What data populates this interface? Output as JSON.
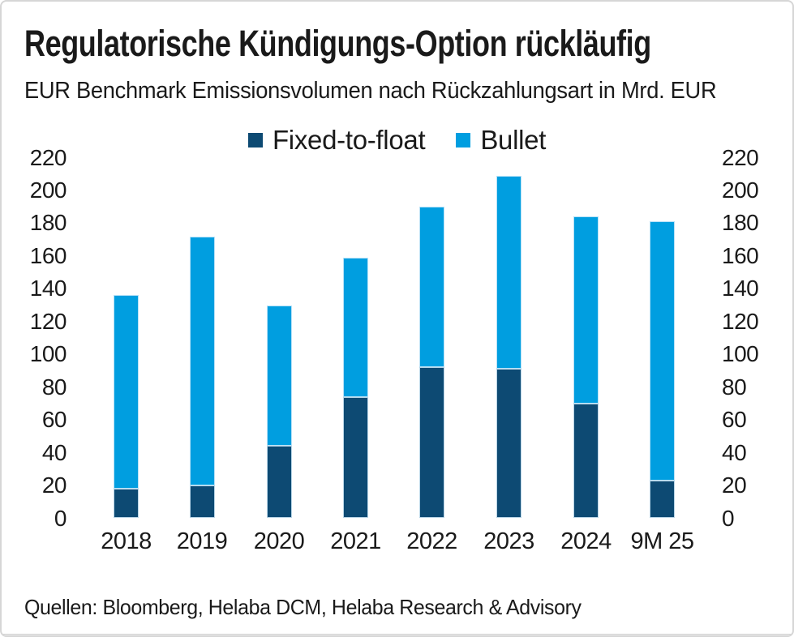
{
  "header": {
    "title": "Regulatorische Kündigungs-Option rückläufig",
    "subtitle": "EUR Benchmark Emissionsvolumen nach Rückzahlungsart in Mrd. EUR"
  },
  "footer": {
    "source": "Quellen: Bloomberg, Helaba DCM, Helaba Research & Advisory"
  },
  "colors": {
    "fixed_to_float": "#0D4A73",
    "bullet": "#009EE0",
    "text": "#1A1A1A"
  },
  "chart_data": {
    "type": "bar",
    "stacked": true,
    "title": "Regulatorische Kündigungs-Option rückläufig",
    "subtitle": "EUR Benchmark Emissionsvolumen nach Rückzahlungsart in Mrd. EUR",
    "unit": "Mrd. EUR",
    "categories": [
      "2018",
      "2019",
      "2020",
      "2021",
      "2022",
      "2023",
      "2024",
      "9M 25"
    ],
    "series": [
      {
        "name": "Fixed-to-float",
        "color": "#0D4A73",
        "values": [
          18,
          20,
          44,
          74,
          92,
          91,
          70,
          23
        ]
      },
      {
        "name": "Bullet",
        "color": "#009EE0",
        "values": [
          118,
          152,
          86,
          85,
          98,
          118,
          114,
          158
        ]
      }
    ],
    "totals": [
      136,
      172,
      130,
      159,
      190,
      209,
      184,
      181
    ],
    "ylim": [
      0,
      220
    ],
    "ytick_step": 20,
    "grid": false,
    "legend_position": "top",
    "y_axis_sides": [
      "left",
      "right"
    ],
    "xlabel": "",
    "ylabel": ""
  }
}
